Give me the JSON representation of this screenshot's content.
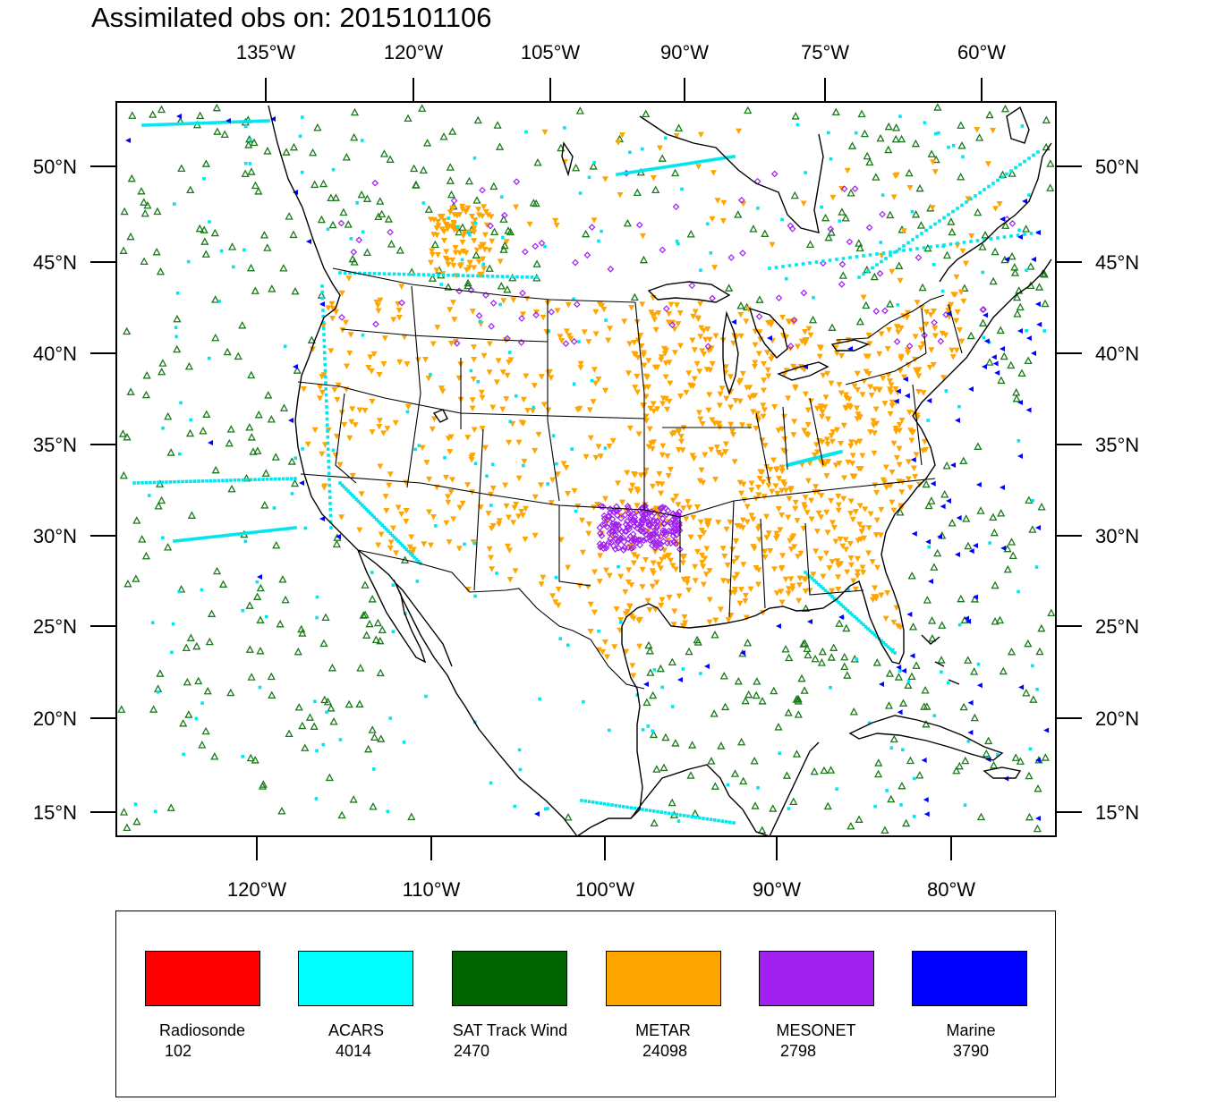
{
  "title": "Assimilated obs on: 2015101106",
  "top_axis_labels": [
    "135°W",
    "120°W",
    "105°W",
    "90°W",
    "75°W",
    "60°W"
  ],
  "bottom_axis_labels": [
    "120°W",
    "110°W",
    "100°W",
    "90°W",
    "80°W"
  ],
  "lat_labels": [
    "50°N",
    "45°N",
    "40°N",
    "35°N",
    "30°N",
    "25°N",
    "20°N",
    "15°N"
  ],
  "legend": [
    {
      "name": "Radiosonde",
      "count": "102",
      "color": "#ff0000"
    },
    {
      "name": "ACARS",
      "count": "4014",
      "color": "#00ffff"
    },
    {
      "name": "SAT Track Wind",
      "count": "2470",
      "color": "#006400"
    },
    {
      "name": "METAR",
      "count": "24098",
      "color": "#ffa500"
    },
    {
      "name": "MESONET",
      "count": "2798",
      "color": "#a020f0"
    },
    {
      "name": "Marine",
      "count": "3790",
      "color": "#0000ff"
    }
  ],
  "map_colors": {
    "satwind": "#1a7a1a",
    "acars": "#00e5ee",
    "metar": "#ffa500",
    "mesonet": "#a020f0",
    "marine": "#0000ff",
    "coast": "#000000"
  }
}
